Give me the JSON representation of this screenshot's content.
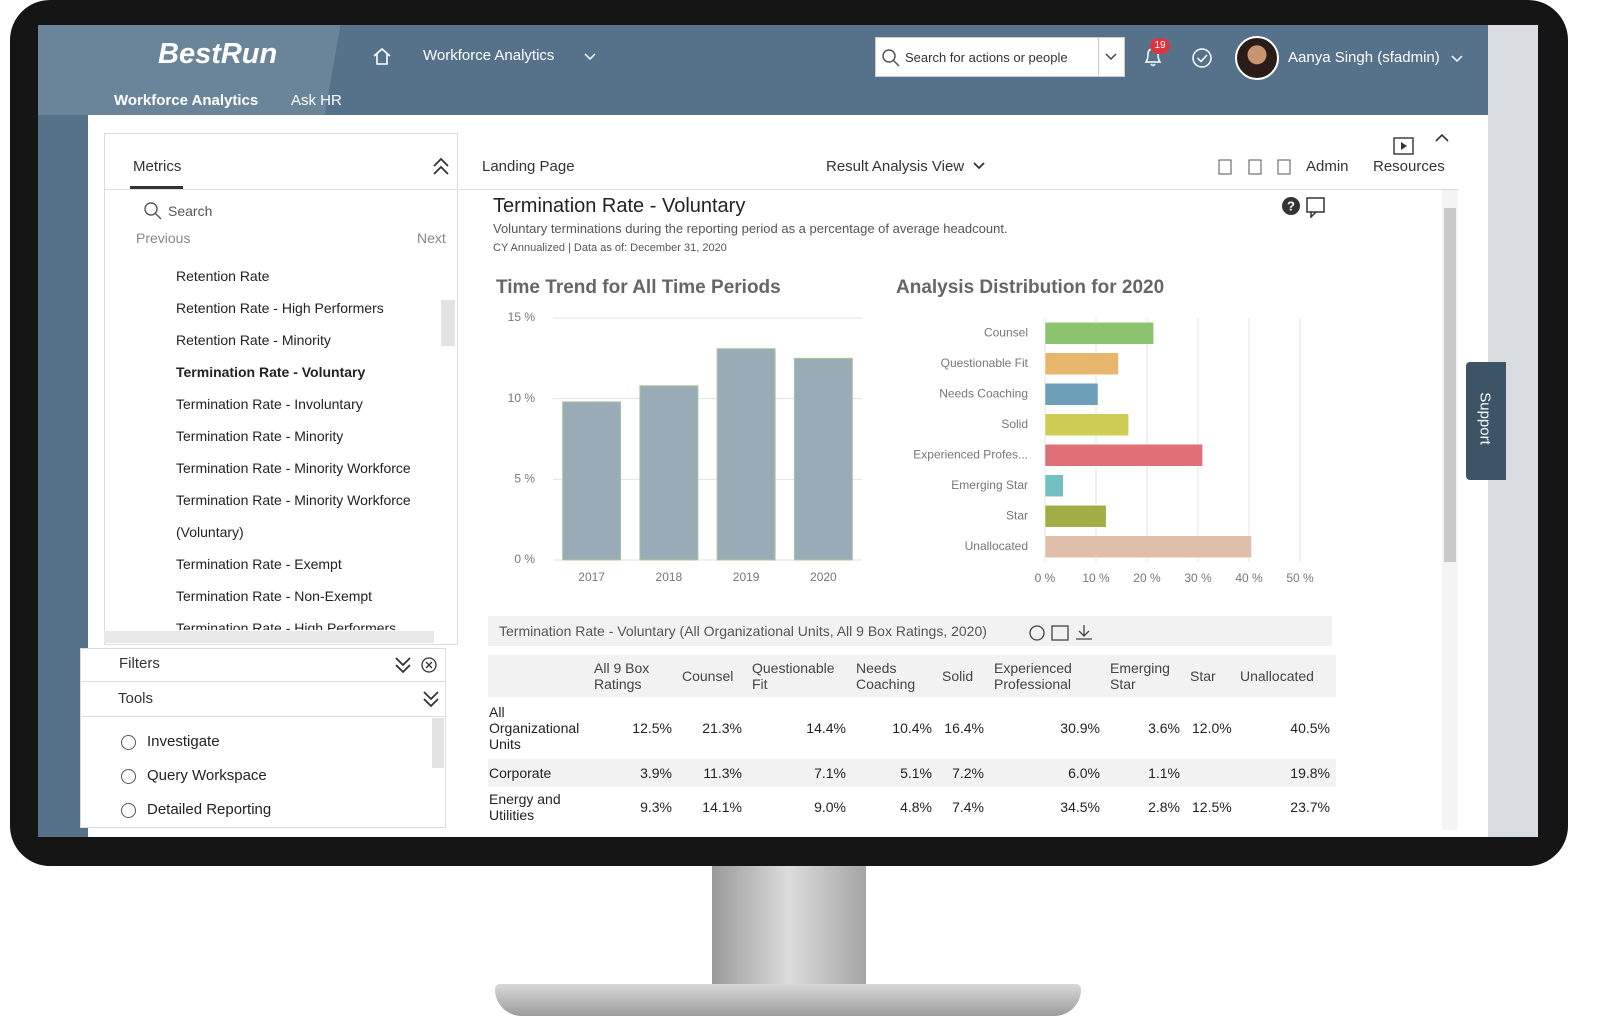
{
  "header": {
    "logo": "BestRun",
    "nav_title": "Workforce Analytics",
    "search_placeholder": "Search for actions or people",
    "notification_count": 19,
    "user_name": "Aanya Singh (sfadmin)",
    "tabs": [
      "Workforce Analytics",
      "Ask HR"
    ]
  },
  "sidebar": {
    "tab": "Metrics",
    "search_placeholder": "Search",
    "previous": "Previous",
    "next": "Next",
    "metrics": [
      {
        "label": "Retention Rate"
      },
      {
        "label": "Retention Rate - High Performers"
      },
      {
        "label": "Retention Rate - Minority"
      },
      {
        "label": "Termination Rate - Voluntary",
        "selected": true
      },
      {
        "label": "Termination Rate - Involuntary"
      },
      {
        "label": "Termination Rate - Minority"
      },
      {
        "label": "Termination Rate - Minority Workforce"
      },
      {
        "label": "Termination Rate - Minority Workforce (Voluntary)"
      },
      {
        "label": "Termination Rate - Exempt"
      },
      {
        "label": "Termination Rate - Non-Exempt"
      },
      {
        "label": "Termination Rate - High Performers"
      }
    ],
    "filters": "Filters",
    "tools": "Tools",
    "tool_items": [
      "Investigate",
      "Query Workspace",
      "Detailed Reporting"
    ]
  },
  "toolbar": {
    "landing": "Landing Page",
    "view": "Result Analysis View",
    "admin": "Admin",
    "resources": "Resources"
  },
  "support": "Support",
  "report": {
    "title": "Termination Rate - Voluntary",
    "description": "Voluntary terminations during the reporting period as a percentage of average headcount.",
    "meta": "CY Annualized | Data as of: December 31, 2020"
  },
  "chart_data": [
    {
      "type": "bar",
      "title": "Time Trend for All Time Periods",
      "categories": [
        "2017",
        "2018",
        "2019",
        "2020"
      ],
      "values": [
        9.8,
        10.8,
        13.1,
        12.5
      ],
      "color": "#9aabb8",
      "ylim": [
        0,
        15
      ],
      "yticks": [
        {
          "value": 0,
          "label": "0 %"
        },
        {
          "value": 5,
          "label": "5 %"
        },
        {
          "value": 10,
          "label": "10 %"
        },
        {
          "value": 15,
          "label": "15 %"
        }
      ],
      "grid": true
    },
    {
      "type": "hbar",
      "title": "Analysis Distribution for 2020",
      "categories": [
        "Counsel",
        "Questionable Fit",
        "Needs Coaching",
        "Solid",
        "Experienced Profes...",
        "Emerging Star",
        "Star",
        "Unallocated"
      ],
      "values": [
        21.3,
        14.4,
        10.4,
        16.4,
        30.9,
        3.6,
        12.0,
        40.5
      ],
      "colors": [
        "#8dc26f",
        "#e8b56c",
        "#6e9fb8",
        "#cfcc55",
        "#e07077",
        "#74c0c0",
        "#a3ad47",
        "#dfbfa9"
      ],
      "xlim": [
        0,
        50
      ],
      "xticks": [
        {
          "value": 0,
          "label": "0 %"
        },
        {
          "value": 10,
          "label": "10 %"
        },
        {
          "value": 20,
          "label": "20 %"
        },
        {
          "value": 30,
          "label": "30 %"
        },
        {
          "value": 40,
          "label": "40 %"
        },
        {
          "value": 50,
          "label": "50 %"
        }
      ],
      "grid": true
    }
  ],
  "table": {
    "title": "Termination Rate - Voluntary (All Organizational Units, All 9 Box Ratings, 2020)",
    "columns": [
      "All 9 Box Ratings",
      "Counsel",
      "Questionable Fit",
      "Needs Coaching",
      "Solid",
      "Experienced Professional",
      "Emerging Star",
      "Star",
      "Unallocated"
    ],
    "rows": [
      {
        "label": "All Organizational Units",
        "cells": [
          "12.5%",
          "21.3%",
          "14.4%",
          "10.4%",
          "16.4%",
          "30.9%",
          "3.6%",
          "12.0%",
          "40.5%"
        ]
      },
      {
        "label": "Corporate",
        "cells": [
          "3.9%",
          "11.3%",
          "7.1%",
          "5.1%",
          "7.2%",
          "6.0%",
          "1.1%",
          null,
          "19.8%"
        ]
      },
      {
        "label": "Energy and Utilities",
        "cells": [
          "9.3%",
          "14.1%",
          "9.0%",
          "4.8%",
          "7.4%",
          "34.5%",
          "2.8%",
          "12.5%",
          "23.7%"
        ]
      }
    ]
  }
}
